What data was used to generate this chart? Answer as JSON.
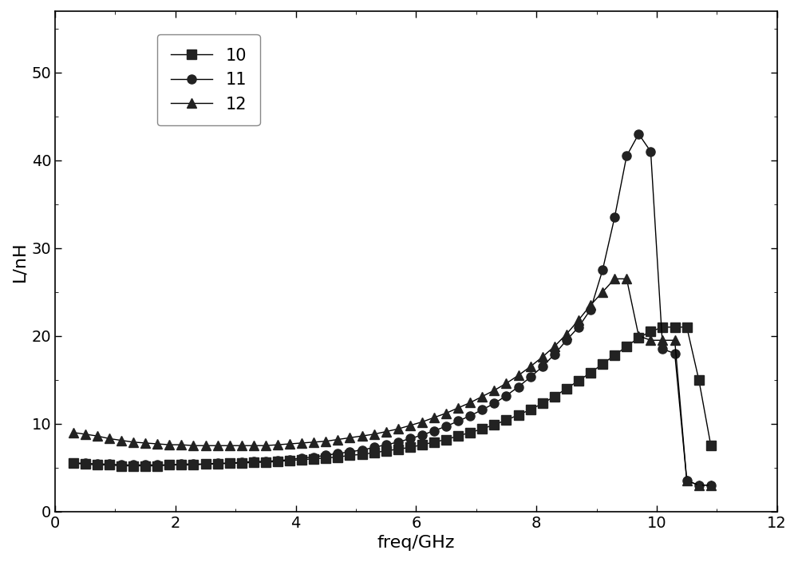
{
  "title": "",
  "xlabel": "freq/GHz",
  "ylabel": "L/nH",
  "xlim": [
    0,
    12
  ],
  "ylim": [
    0,
    57
  ],
  "xticks": [
    0,
    2,
    4,
    6,
    8,
    10,
    12
  ],
  "yticks": [
    0,
    10,
    20,
    30,
    40,
    50
  ],
  "background_color": "#ffffff",
  "series": [
    {
      "label": "10",
      "marker": "s",
      "color": "#000000",
      "freq": [
        0.3,
        0.5,
        0.7,
        0.9,
        1.1,
        1.3,
        1.5,
        1.7,
        1.9,
        2.1,
        2.3,
        2.5,
        2.7,
        2.9,
        3.1,
        3.3,
        3.5,
        3.7,
        3.9,
        4.1,
        4.3,
        4.5,
        4.7,
        4.9,
        5.1,
        5.3,
        5.5,
        5.7,
        5.9,
        6.1,
        6.3,
        6.5,
        6.7,
        6.9,
        7.1,
        7.3,
        7.5,
        7.7,
        7.9,
        8.1,
        8.3,
        8.5,
        8.7,
        8.9,
        9.1,
        9.3,
        9.5,
        9.7,
        9.9,
        10.1,
        10.3,
        10.5,
        10.7,
        10.9
      ],
      "L": [
        5.5,
        5.4,
        5.3,
        5.3,
        5.2,
        5.2,
        5.2,
        5.2,
        5.3,
        5.3,
        5.3,
        5.4,
        5.4,
        5.5,
        5.5,
        5.6,
        5.6,
        5.7,
        5.8,
        5.9,
        6.0,
        6.1,
        6.2,
        6.4,
        6.5,
        6.7,
        6.9,
        7.1,
        7.3,
        7.6,
        7.9,
        8.2,
        8.6,
        9.0,
        9.4,
        9.9,
        10.4,
        11.0,
        11.6,
        12.3,
        13.1,
        14.0,
        14.9,
        15.8,
        16.8,
        17.8,
        18.8,
        19.8,
        20.5,
        21.0,
        21.0,
        21.0,
        15.0,
        7.5
      ]
    },
    {
      "label": "11",
      "marker": "o",
      "color": "#000000",
      "freq": [
        0.3,
        0.5,
        0.7,
        0.9,
        1.1,
        1.3,
        1.5,
        1.7,
        1.9,
        2.1,
        2.3,
        2.5,
        2.7,
        2.9,
        3.1,
        3.3,
        3.5,
        3.7,
        3.9,
        4.1,
        4.3,
        4.5,
        4.7,
        4.9,
        5.1,
        5.3,
        5.5,
        5.7,
        5.9,
        6.1,
        6.3,
        6.5,
        6.7,
        6.9,
        7.1,
        7.3,
        7.5,
        7.7,
        7.9,
        8.1,
        8.3,
        8.5,
        8.7,
        8.9,
        9.1,
        9.3,
        9.5,
        9.7,
        9.9,
        10.1,
        10.3,
        10.5,
        10.7,
        10.9
      ],
      "L": [
        5.5,
        5.5,
        5.4,
        5.4,
        5.3,
        5.3,
        5.3,
        5.3,
        5.3,
        5.4,
        5.4,
        5.4,
        5.5,
        5.5,
        5.6,
        5.7,
        5.7,
        5.8,
        5.9,
        6.1,
        6.2,
        6.4,
        6.6,
        6.8,
        7.0,
        7.3,
        7.6,
        7.9,
        8.3,
        8.7,
        9.2,
        9.7,
        10.3,
        10.9,
        11.6,
        12.3,
        13.2,
        14.2,
        15.3,
        16.5,
        17.9,
        19.5,
        21.0,
        23.0,
        27.5,
        33.5,
        40.5,
        43.0,
        41.0,
        18.5,
        18.0,
        3.5,
        3.0,
        3.0
      ]
    },
    {
      "label": "12",
      "marker": "^",
      "color": "#000000",
      "freq": [
        0.3,
        0.5,
        0.7,
        0.9,
        1.1,
        1.3,
        1.5,
        1.7,
        1.9,
        2.1,
        2.3,
        2.5,
        2.7,
        2.9,
        3.1,
        3.3,
        3.5,
        3.7,
        3.9,
        4.1,
        4.3,
        4.5,
        4.7,
        4.9,
        5.1,
        5.3,
        5.5,
        5.7,
        5.9,
        6.1,
        6.3,
        6.5,
        6.7,
        6.9,
        7.1,
        7.3,
        7.5,
        7.7,
        7.9,
        8.1,
        8.3,
        8.5,
        8.7,
        8.9,
        9.1,
        9.3,
        9.5,
        9.7,
        9.9,
        10.1,
        10.3,
        10.5,
        10.7,
        10.9
      ],
      "L": [
        9.0,
        8.8,
        8.6,
        8.3,
        8.1,
        7.9,
        7.8,
        7.7,
        7.6,
        7.6,
        7.5,
        7.5,
        7.5,
        7.5,
        7.5,
        7.5,
        7.5,
        7.6,
        7.7,
        7.8,
        7.9,
        8.0,
        8.2,
        8.4,
        8.6,
        8.8,
        9.1,
        9.4,
        9.8,
        10.2,
        10.7,
        11.2,
        11.8,
        12.4,
        13.1,
        13.8,
        14.6,
        15.5,
        16.5,
        17.6,
        18.8,
        20.2,
        21.8,
        23.5,
        25.0,
        26.5,
        26.5,
        20.0,
        19.5,
        19.5,
        19.5,
        3.5,
        3.0,
        3.0
      ]
    }
  ],
  "legend_loc": "upper left",
  "marker_size": 8,
  "line_width": 1.0,
  "font_size_label": 16,
  "font_size_tick": 14,
  "font_size_legend": 15
}
